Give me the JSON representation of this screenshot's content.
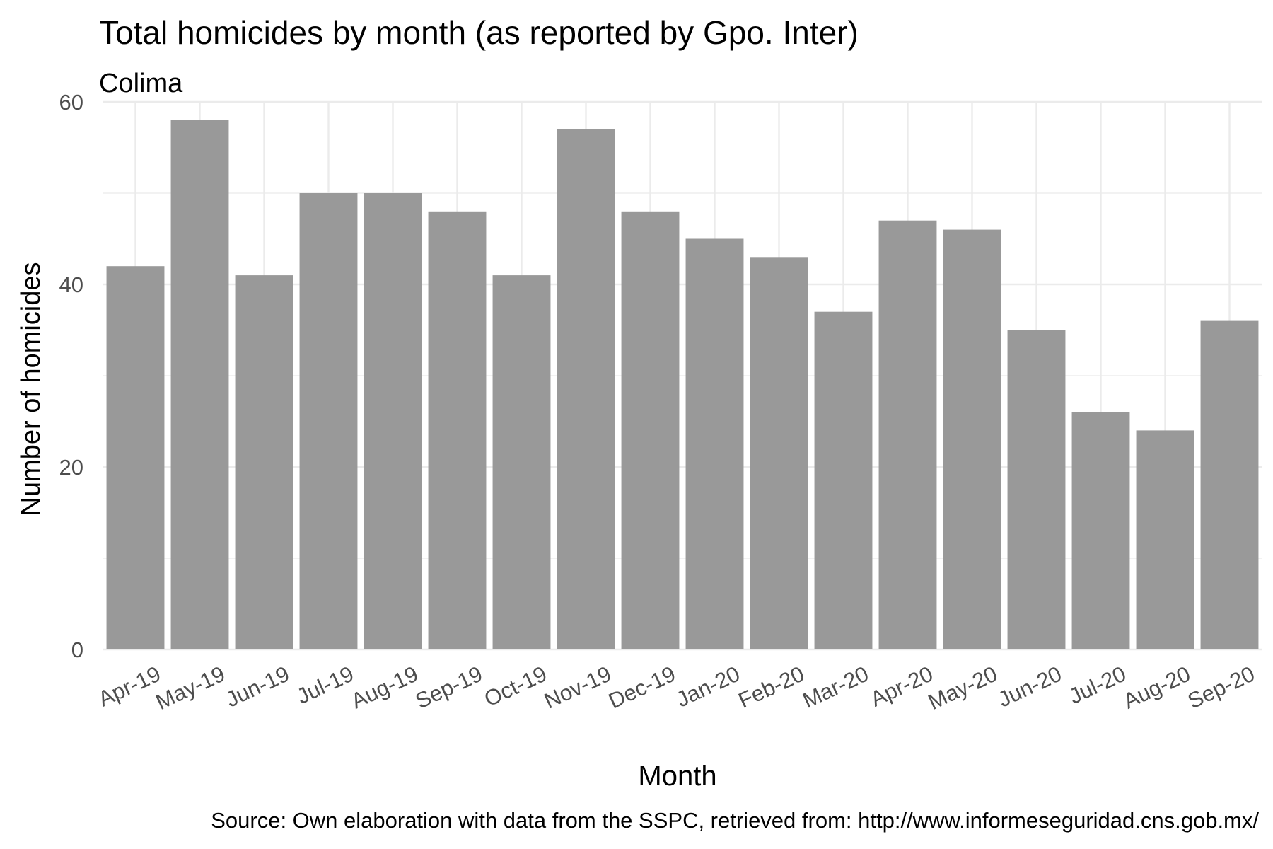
{
  "chart_data": {
    "type": "bar",
    "title": "Total homicides by month (as reported by Gpo. Inter)",
    "subtitle": "Colima",
    "xlabel": "Month",
    "ylabel": "Number of homicides",
    "caption": "Source: Own elaboration with data from the SSPC, retrieved from: http://www.informeseguridad.cns.gob.mx/",
    "categories": [
      "Apr-19",
      "May-19",
      "Jun-19",
      "Jul-19",
      "Aug-19",
      "Sep-19",
      "Oct-19",
      "Nov-19",
      "Dec-19",
      "Jan-20",
      "Feb-20",
      "Mar-20",
      "Apr-20",
      "May-20",
      "Jun-20",
      "Jul-20",
      "Aug-20",
      "Sep-20"
    ],
    "values": [
      42,
      58,
      41,
      50,
      50,
      48,
      41,
      57,
      48,
      45,
      43,
      37,
      47,
      46,
      35,
      26,
      24,
      36
    ],
    "ylim": [
      0,
      60
    ],
    "yticks": [
      "0",
      "20",
      "40",
      "60"
    ],
    "grid": true,
    "bar_color": "#999999",
    "grid_color": "#ebebeb"
  }
}
